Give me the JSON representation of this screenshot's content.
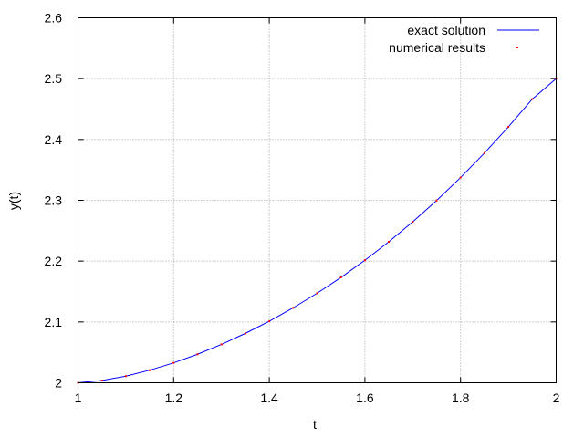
{
  "chart_data": {
    "type": "line",
    "title": "",
    "xlabel": "t",
    "ylabel": "y(t)",
    "xlim": [
      1,
      2
    ],
    "ylim": [
      2,
      2.6
    ],
    "grid": true,
    "legend_position": "top-right",
    "x_ticks": [
      "1",
      "1.2",
      "1.4",
      "1.6",
      "1.8",
      "2"
    ],
    "y_ticks": [
      "2",
      "2.1",
      "2.2",
      "2.3",
      "2.4",
      "2.5",
      "2.6"
    ],
    "series": [
      {
        "name": "exact solution",
        "style": "line",
        "color": "#0000ff",
        "x": [
          1.0,
          1.05,
          1.1,
          1.15,
          1.2,
          1.25,
          1.3,
          1.35,
          1.4,
          1.45,
          1.5,
          1.55,
          1.6,
          1.65,
          1.7,
          1.75,
          1.8,
          1.85,
          1.9,
          1.95,
          2.0
        ],
        "y": [
          2.0,
          2.0038,
          2.0109,
          2.0207,
          2.0327,
          2.0469,
          2.0631,
          2.0812,
          2.1012,
          2.1232,
          2.1472,
          2.1732,
          2.2014,
          2.2318,
          2.2646,
          2.2997,
          2.3374,
          2.3777,
          2.4206,
          2.4664,
          2.5
        ]
      },
      {
        "name": "numerical results",
        "style": "points",
        "color": "#ff0000",
        "x": [
          1.0,
          1.05,
          1.1,
          1.15,
          1.2,
          1.25,
          1.3,
          1.35,
          1.4,
          1.45,
          1.5,
          1.55,
          1.6,
          1.65,
          1.7,
          1.75,
          1.8,
          1.85,
          1.9,
          1.95,
          2.0
        ],
        "y": [
          2.0,
          2.0038,
          2.0109,
          2.0207,
          2.0327,
          2.0469,
          2.0631,
          2.0812,
          2.1012,
          2.1232,
          2.1472,
          2.1732,
          2.2014,
          2.2318,
          2.2646,
          2.2997,
          2.3374,
          2.3777,
          2.4206,
          2.4664,
          2.5
        ]
      }
    ]
  }
}
